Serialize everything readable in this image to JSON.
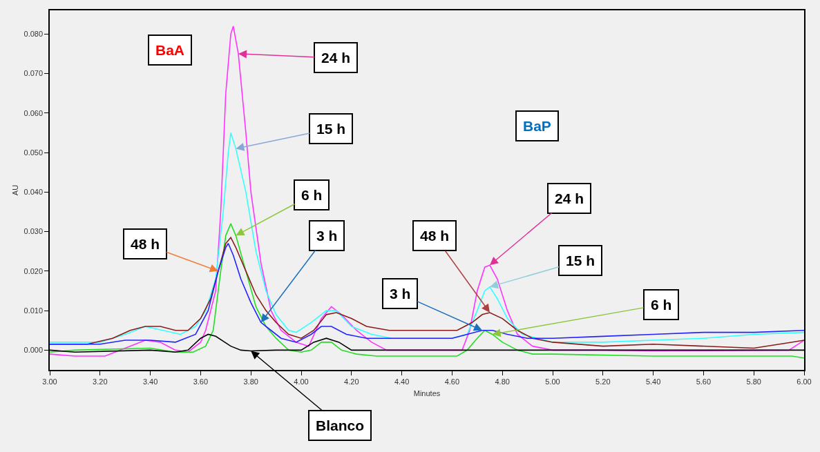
{
  "chart_data": {
    "type": "line",
    "xlabel": "Minutes",
    "ylabel": "AU",
    "xlim": [
      3.0,
      6.0
    ],
    "ylim": [
      -0.005,
      0.086
    ],
    "xticks": [
      {
        "value": 3.0,
        "label": "3.00"
      },
      {
        "value": 3.2,
        "label": "3.20"
      },
      {
        "value": 3.4,
        "label": "3.40"
      },
      {
        "value": 3.6,
        "label": "3.60"
      },
      {
        "value": 3.8,
        "label": "3.80"
      },
      {
        "value": 4.0,
        "label": "4.00"
      },
      {
        "value": 4.2,
        "label": "4.20"
      },
      {
        "value": 4.4,
        "label": "4.40"
      },
      {
        "value": 4.6,
        "label": "4.60"
      },
      {
        "value": 4.8,
        "label": "4.80"
      },
      {
        "value": 5.0,
        "label": "5.00"
      },
      {
        "value": 5.2,
        "label": "5.20"
      },
      {
        "value": 5.4,
        "label": "5.40"
      },
      {
        "value": 5.6,
        "label": "5.60"
      },
      {
        "value": 5.8,
        "label": "5.80"
      },
      {
        "value": 6.0,
        "label": "6.00"
      }
    ],
    "yticks": [
      {
        "value": 0.0,
        "label": "0.000"
      },
      {
        "value": 0.01,
        "label": "0.010"
      },
      {
        "value": 0.02,
        "label": "0.020"
      },
      {
        "value": 0.03,
        "label": "0.030"
      },
      {
        "value": 0.04,
        "label": "0.040"
      },
      {
        "value": 0.05,
        "label": "0.050"
      },
      {
        "value": 0.06,
        "label": "0.060"
      },
      {
        "value": 0.07,
        "label": "0.070"
      },
      {
        "value": 0.08,
        "label": "0.080"
      }
    ],
    "grid": false,
    "marker": "none",
    "line_style": "solid",
    "series": [
      {
        "color": "#ff33ff",
        "x": [
          3.0,
          3.1,
          3.22,
          3.3,
          3.38,
          3.44,
          3.5,
          3.55,
          3.6,
          3.62,
          3.66,
          3.68,
          3.7,
          3.72,
          3.73,
          3.75,
          3.78,
          3.8,
          3.84,
          3.88,
          3.92,
          3.98,
          4.03,
          4.08,
          4.12,
          4.16,
          4.22,
          4.28,
          4.34,
          4.4,
          4.64,
          4.67,
          4.7,
          4.73,
          4.75,
          4.78,
          4.82,
          4.86,
          4.92,
          5.0,
          5.2,
          5.4,
          5.94,
          6.0
        ],
        "values": [
          -0.001,
          -0.0015,
          -0.0015,
          0.0005,
          0.0025,
          0.002,
          0.0,
          -0.0005,
          0.002,
          0.005,
          0.015,
          0.035,
          0.065,
          0.08,
          0.082,
          0.075,
          0.055,
          0.04,
          0.022,
          0.01,
          0.005,
          0.002,
          0.001,
          0.008,
          0.011,
          0.009,
          0.005,
          0.002,
          0.0,
          0.0,
          0.0,
          0.005,
          0.015,
          0.021,
          0.0215,
          0.018,
          0.01,
          0.004,
          0.001,
          0.0,
          0.0,
          -0.0002,
          0.0,
          0.0025
        ]
      },
      {
        "color": "#33ffff",
        "x": [
          3.0,
          3.2,
          3.3,
          3.38,
          3.45,
          3.52,
          3.58,
          3.62,
          3.66,
          3.69,
          3.71,
          3.72,
          3.74,
          3.78,
          3.82,
          3.86,
          3.9,
          3.95,
          3.98,
          4.04,
          4.1,
          4.14,
          4.2,
          4.28,
          4.36,
          4.6,
          4.66,
          4.7,
          4.73,
          4.75,
          4.78,
          4.82,
          4.88,
          5.0,
          5.2,
          5.4,
          5.6,
          5.8,
          6.0
        ],
        "values": [
          0.002,
          0.002,
          0.004,
          0.006,
          0.005,
          0.004,
          0.006,
          0.01,
          0.018,
          0.035,
          0.05,
          0.055,
          0.051,
          0.04,
          0.025,
          0.015,
          0.009,
          0.005,
          0.0045,
          0.007,
          0.01,
          0.01,
          0.006,
          0.004,
          0.003,
          0.003,
          0.004,
          0.01,
          0.015,
          0.016,
          0.013,
          0.008,
          0.004,
          0.002,
          0.002,
          0.0025,
          0.003,
          0.004,
          0.0045
        ]
      },
      {
        "color": "#22dd22",
        "x": [
          3.0,
          3.1,
          3.4,
          3.5,
          3.57,
          3.62,
          3.65,
          3.68,
          3.7,
          3.72,
          3.74,
          3.78,
          3.82,
          3.86,
          3.9,
          3.95,
          4.0,
          4.04,
          4.08,
          4.12,
          4.16,
          4.22,
          4.3,
          4.5,
          4.62,
          4.66,
          4.7,
          4.73,
          4.76,
          4.8,
          4.86,
          4.92,
          5.0,
          5.4,
          5.8,
          5.95,
          6.0
        ],
        "values": [
          -0.0005,
          0.0,
          0.0005,
          -0.0005,
          -0.0005,
          0.001,
          0.005,
          0.02,
          0.029,
          0.032,
          0.029,
          0.02,
          0.011,
          0.006,
          0.003,
          0.0,
          -0.0005,
          0.0,
          0.002,
          0.002,
          0.0,
          -0.001,
          -0.0015,
          -0.0015,
          -0.0015,
          0.0,
          0.003,
          0.005,
          0.004,
          0.002,
          0.0,
          -0.001,
          -0.001,
          -0.0015,
          -0.0015,
          -0.0015,
          -0.002
        ]
      },
      {
        "color": "#8b1a1a",
        "x": [
          3.0,
          3.15,
          3.25,
          3.32,
          3.38,
          3.44,
          3.5,
          3.55,
          3.6,
          3.64,
          3.67,
          3.7,
          3.72,
          3.74,
          3.78,
          3.82,
          3.86,
          3.9,
          3.95,
          4.0,
          4.05,
          4.1,
          4.14,
          4.2,
          4.26,
          4.35,
          4.5,
          4.62,
          4.68,
          4.72,
          4.75,
          4.8,
          4.86,
          4.92,
          5.0,
          5.2,
          5.4,
          5.8,
          5.95,
          6.0
        ],
        "values": [
          0.0015,
          0.0015,
          0.003,
          0.005,
          0.006,
          0.006,
          0.005,
          0.005,
          0.008,
          0.013,
          0.02,
          0.027,
          0.0285,
          0.026,
          0.02,
          0.014,
          0.01,
          0.007,
          0.004,
          0.003,
          0.005,
          0.009,
          0.0095,
          0.008,
          0.006,
          0.005,
          0.005,
          0.005,
          0.007,
          0.009,
          0.0095,
          0.008,
          0.005,
          0.003,
          0.002,
          0.001,
          0.0015,
          0.0005,
          0.002,
          0.0025
        ]
      },
      {
        "color": "#2222ff",
        "x": [
          3.0,
          3.2,
          3.3,
          3.4,
          3.5,
          3.58,
          3.63,
          3.67,
          3.7,
          3.71,
          3.73,
          3.76,
          3.8,
          3.84,
          3.88,
          3.92,
          3.98,
          4.04,
          4.08,
          4.12,
          4.18,
          4.26,
          4.4,
          4.6,
          4.66,
          4.72,
          4.76,
          4.82,
          4.9,
          5.0,
          5.2,
          5.4,
          5.6,
          5.8,
          6.0
        ],
        "values": [
          0.0015,
          0.0015,
          0.0025,
          0.0025,
          0.002,
          0.004,
          0.01,
          0.02,
          0.026,
          0.027,
          0.024,
          0.018,
          0.012,
          0.007,
          0.005,
          0.003,
          0.002,
          0.004,
          0.006,
          0.006,
          0.004,
          0.003,
          0.003,
          0.003,
          0.004,
          0.005,
          0.005,
          0.004,
          0.003,
          0.003,
          0.0035,
          0.004,
          0.0045,
          0.0045,
          0.005
        ]
      },
      {
        "color": "#000000",
        "x": [
          3.0,
          3.1,
          3.4,
          3.5,
          3.55,
          3.6,
          3.63,
          3.66,
          3.72,
          3.76,
          3.8,
          3.9,
          4.0,
          4.05,
          4.1,
          4.15,
          4.2,
          4.4,
          6.0
        ],
        "values": [
          0.0,
          -0.0005,
          0.0,
          -0.0005,
          0.0,
          0.003,
          0.004,
          0.0035,
          0.001,
          0.0,
          -0.0002,
          0.0,
          0.0,
          0.002,
          0.003,
          0.002,
          0.0,
          0.0,
          0.0
        ]
      }
    ],
    "annotations": [
      "BaA",
      {
        "text": "24 h",
        "x": 3.75,
        "y": 0.075
      },
      {
        "text": "15 h",
        "x": 3.74,
        "y": 0.051
      },
      {
        "text": "6 h",
        "x": 3.74,
        "y": 0.029
      },
      {
        "text": "48 h",
        "x": 3.67,
        "y": 0.02
      },
      {
        "text": "3 h",
        "x": 3.84,
        "y": 0.007
      },
      {
        "text": "Blanco",
        "x": 3.8,
        "y": -0.0002
      },
      "BaP",
      {
        "text": "24 h",
        "x": 4.75,
        "y": 0.0215
      },
      {
        "text": "48 h",
        "x": 4.75,
        "y": 0.0095
      },
      {
        "text": "3 h",
        "x": 4.72,
        "y": 0.005
      },
      {
        "text": "15 h",
        "x": 4.75,
        "y": 0.016
      },
      {
        "text": "6 h",
        "x": 4.76,
        "y": 0.004
      }
    ]
  }
}
